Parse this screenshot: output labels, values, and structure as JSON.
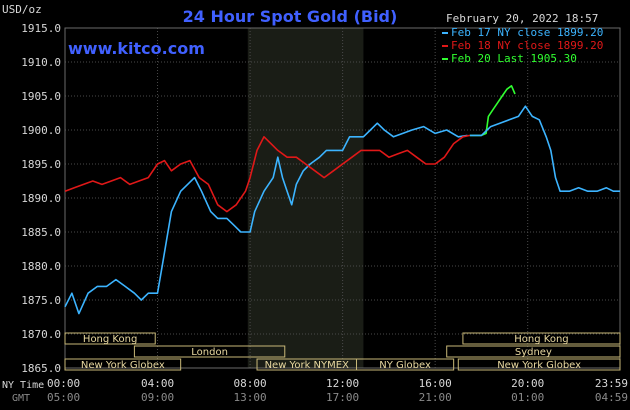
{
  "chart_data": {
    "type": "line",
    "title": "24 Hour Spot Gold (Bid)",
    "watermark": "www.kitco.com",
    "date_stamp": "February 20, 2022 18:57",
    "y_unit": "USD/oz",
    "ylim": [
      1865.0,
      1915.0
    ],
    "y_ticks": [
      "1915.0",
      "1910.0",
      "1905.0",
      "1900.0",
      "1895.0",
      "1890.0",
      "1885.0",
      "1880.0",
      "1875.0",
      "1870.0",
      "1865.0"
    ],
    "x_row_label_1": "NY Time",
    "x_row_label_2": "GMT",
    "x_ticks_ny": [
      "00:00",
      "04:00",
      "08:00",
      "12:00",
      "16:00",
      "20:00",
      "23:59"
    ],
    "x_ticks_gmt": [
      "05:00",
      "09:00",
      "13:00",
      "17:00",
      "21:00",
      "01:00",
      "04:59"
    ],
    "grid": true,
    "legend_position": "top-right",
    "colors": {
      "background": "#000000",
      "plot_bg": "#000000",
      "shade": "#1a1d16",
      "grid": "#4a4a4a",
      "axis_text": "#d8d8d8",
      "title": "#4060ff",
      "watermark": "#4060ff",
      "session_text": "#e8d8a0",
      "session_border": "#c8b878"
    },
    "series": [
      {
        "name": "Feb 17 NY close 1899.20",
        "color": "#3cb4ff",
        "points": [
          [
            0,
            1874
          ],
          [
            0.3,
            1876
          ],
          [
            0.6,
            1873
          ],
          [
            1.0,
            1876
          ],
          [
            1.4,
            1877
          ],
          [
            1.8,
            1877
          ],
          [
            2.2,
            1878
          ],
          [
            2.6,
            1877
          ],
          [
            3.0,
            1876
          ],
          [
            3.3,
            1875
          ],
          [
            3.6,
            1876
          ],
          [
            4.0,
            1876
          ],
          [
            4.2,
            1880
          ],
          [
            4.4,
            1884
          ],
          [
            4.6,
            1888
          ],
          [
            5.0,
            1891
          ],
          [
            5.3,
            1892
          ],
          [
            5.6,
            1893
          ],
          [
            5.9,
            1891
          ],
          [
            6.3,
            1888
          ],
          [
            6.6,
            1887
          ],
          [
            7.0,
            1887
          ],
          [
            7.3,
            1886
          ],
          [
            7.6,
            1885
          ],
          [
            8.0,
            1885
          ],
          [
            8.2,
            1888
          ],
          [
            8.6,
            1891
          ],
          [
            9.0,
            1893
          ],
          [
            9.2,
            1896
          ],
          [
            9.4,
            1893
          ],
          [
            9.6,
            1891
          ],
          [
            9.8,
            1889
          ],
          [
            10.0,
            1892
          ],
          [
            10.3,
            1894
          ],
          [
            10.6,
            1895
          ],
          [
            11.0,
            1896
          ],
          [
            11.3,
            1897
          ],
          [
            11.6,
            1897
          ],
          [
            12.0,
            1897
          ],
          [
            12.3,
            1899
          ],
          [
            12.6,
            1899
          ],
          [
            12.9,
            1899
          ],
          [
            13.2,
            1900
          ],
          [
            13.5,
            1901
          ],
          [
            13.8,
            1900
          ],
          [
            14.2,
            1899
          ],
          [
            14.6,
            1899.5
          ],
          [
            15.0,
            1900
          ],
          [
            15.5,
            1900.5
          ],
          [
            16.0,
            1899.5
          ],
          [
            16.5,
            1900
          ],
          [
            17.0,
            1899
          ],
          [
            17.4,
            1899.2
          ]
        ]
      },
      {
        "name": "Feb 18 NY close 1899.20",
        "color": "#e01818",
        "points": [
          [
            0,
            1891
          ],
          [
            0.4,
            1891.5
          ],
          [
            0.8,
            1892
          ],
          [
            1.2,
            1892.5
          ],
          [
            1.6,
            1892
          ],
          [
            2.0,
            1892.5
          ],
          [
            2.4,
            1893
          ],
          [
            2.8,
            1892
          ],
          [
            3.2,
            1892.5
          ],
          [
            3.6,
            1893
          ],
          [
            4.0,
            1895
          ],
          [
            4.3,
            1895.5
          ],
          [
            4.6,
            1894
          ],
          [
            5.0,
            1895
          ],
          [
            5.4,
            1895.5
          ],
          [
            5.8,
            1893
          ],
          [
            6.2,
            1892
          ],
          [
            6.6,
            1889
          ],
          [
            7.0,
            1888
          ],
          [
            7.4,
            1889
          ],
          [
            7.8,
            1891
          ],
          [
            8.0,
            1893
          ],
          [
            8.3,
            1897
          ],
          [
            8.6,
            1899
          ],
          [
            8.9,
            1898
          ],
          [
            9.2,
            1897
          ],
          [
            9.6,
            1896
          ],
          [
            10.0,
            1896
          ],
          [
            10.4,
            1895
          ],
          [
            10.8,
            1894
          ],
          [
            11.2,
            1893
          ],
          [
            11.6,
            1894
          ],
          [
            12.0,
            1895
          ],
          [
            12.4,
            1896
          ],
          [
            12.8,
            1897
          ],
          [
            13.2,
            1897
          ],
          [
            13.6,
            1897
          ],
          [
            14.0,
            1896
          ],
          [
            14.4,
            1896.5
          ],
          [
            14.8,
            1897
          ],
          [
            15.2,
            1896
          ],
          [
            15.6,
            1895
          ],
          [
            16.0,
            1895
          ],
          [
            16.4,
            1896
          ],
          [
            16.8,
            1898
          ],
          [
            17.2,
            1899
          ],
          [
            17.5,
            1899.2
          ]
        ]
      },
      {
        "name": "Feb 20 Last 1905.30",
        "color": "#30ff30",
        "points": [
          [
            17.5,
            1899.2
          ],
          [
            18.0,
            1899.2
          ],
          [
            18.2,
            1899.5
          ],
          [
            18.3,
            1902
          ],
          [
            18.5,
            1903
          ],
          [
            18.7,
            1904
          ],
          [
            18.9,
            1905
          ],
          [
            19.1,
            1906
          ],
          [
            19.3,
            1906.5
          ],
          [
            19.45,
            1905.3
          ]
        ]
      },
      {
        "name": "",
        "color": "#3cb4ff",
        "points": [
          [
            17.5,
            1899.2
          ],
          [
            18.0,
            1899.2
          ],
          [
            18.4,
            1900.5
          ],
          [
            18.8,
            1901
          ],
          [
            19.2,
            1901.5
          ],
          [
            19.6,
            1902
          ],
          [
            19.9,
            1903.5
          ],
          [
            20.2,
            1902
          ],
          [
            20.5,
            1901.5
          ],
          [
            20.8,
            1899
          ],
          [
            21.0,
            1897
          ],
          [
            21.2,
            1893
          ],
          [
            21.4,
            1891
          ],
          [
            21.8,
            1891
          ],
          [
            22.2,
            1891.5
          ],
          [
            22.6,
            1891
          ],
          [
            23.0,
            1891
          ],
          [
            23.4,
            1891.5
          ],
          [
            23.7,
            1891
          ],
          [
            23.99,
            1891
          ]
        ]
      }
    ],
    "shaded_band_hours": [
      7.9,
      12.9
    ],
    "sessions": [
      {
        "label": "Hong Kong",
        "start": 0,
        "end": 3.9,
        "row": 0
      },
      {
        "label": "Hong Kong",
        "start": 17.2,
        "end": 23.99,
        "row": 0
      },
      {
        "label": "London",
        "start": 3.0,
        "end": 9.5,
        "row": 1
      },
      {
        "label": "Sydney",
        "start": 16.5,
        "end": 23.99,
        "row": 1
      },
      {
        "label": "New York Globex",
        "start": 0,
        "end": 5.0,
        "row": 2
      },
      {
        "label": "New York NYMEX",
        "start": 8.3,
        "end": 12.6,
        "row": 2
      },
      {
        "label": "NY Globex",
        "start": 12.6,
        "end": 16.8,
        "row": 2
      },
      {
        "label": "New York Globex",
        "start": 17.0,
        "end": 23.99,
        "row": 2
      }
    ]
  }
}
